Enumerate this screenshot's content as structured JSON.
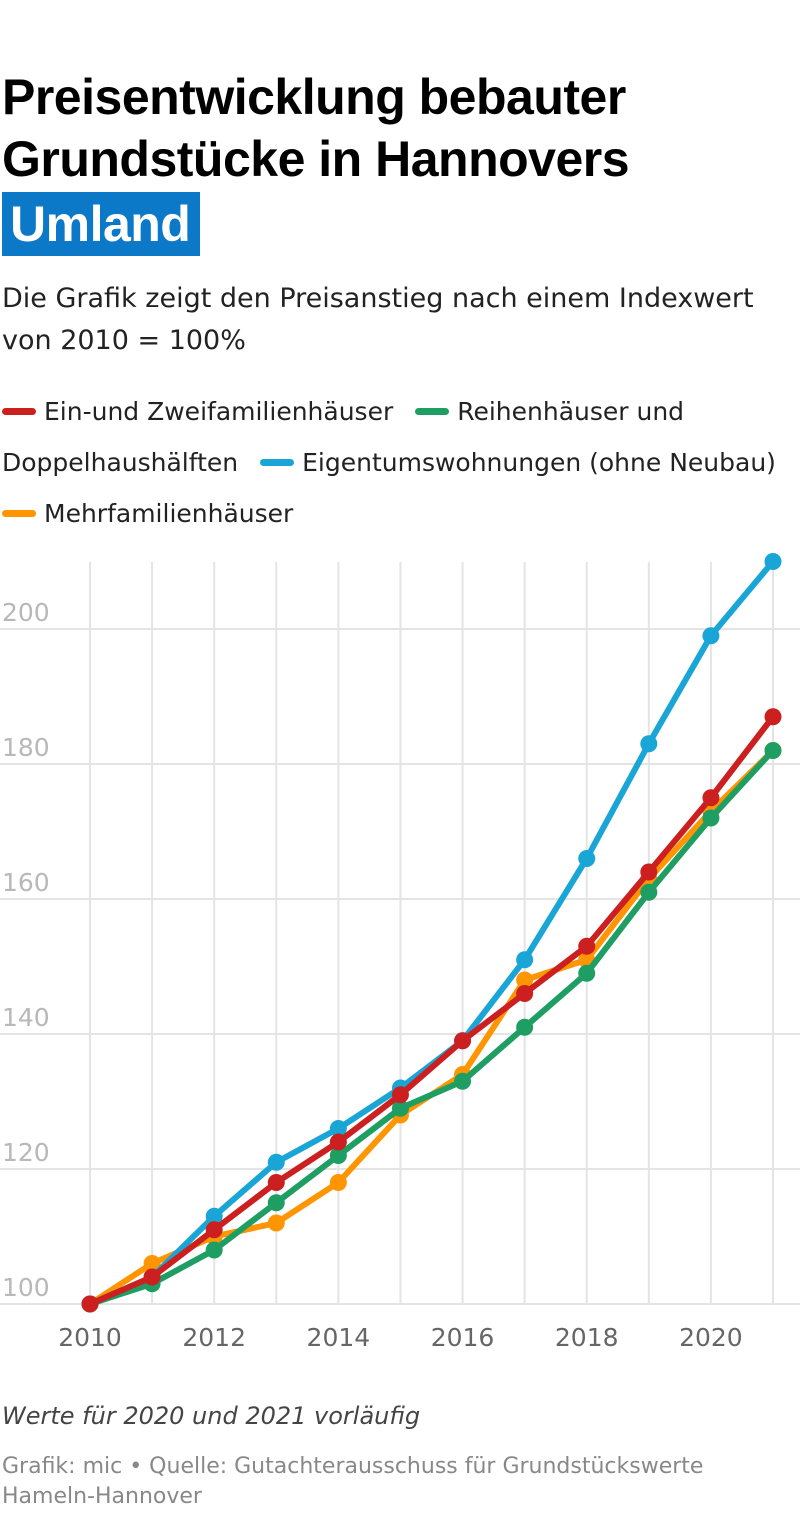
{
  "title": {
    "line1": "Preisentwicklung bebauter",
    "line2": "Grundstücke in Hannovers",
    "highlight": "Umland"
  },
  "subtitle": "Die Grafik zeigt den Preisanstieg nach einem Indexwert von 2010 = 100%",
  "note": "Werte für 2020 und 2021 vorläufig",
  "source": "Grafik: mic • Quelle: Gutachterausschuss für Grundstückswerte Hameln-Hannover",
  "chart_data": {
    "type": "line",
    "x": [
      2010,
      2011,
      2012,
      2013,
      2014,
      2015,
      2016,
      2017,
      2018,
      2019,
      2020,
      2021
    ],
    "xticks": [
      2010,
      2012,
      2014,
      2016,
      2018,
      2020
    ],
    "yticks": [
      100,
      120,
      140,
      160,
      180,
      200
    ],
    "xlim": [
      2010,
      2021
    ],
    "ylim": [
      100,
      210
    ],
    "grid": true,
    "legend_position": "top",
    "series": [
      {
        "name": "Ein-und Zweifamilienhäuser",
        "color": "#cc1f1f",
        "values": [
          100,
          104,
          111,
          118,
          124,
          131,
          139,
          146,
          153,
          164,
          175,
          187
        ]
      },
      {
        "name": "Reihenhäuser und Doppelhaushälften",
        "color": "#1e9e62",
        "values": [
          100,
          103,
          108,
          115,
          122,
          129,
          133,
          141,
          149,
          161,
          172,
          182
        ]
      },
      {
        "name": "Eigentumswohnungen (ohne Neubau)",
        "color": "#19a6d6",
        "values": [
          100,
          104,
          113,
          121,
          126,
          132,
          139,
          151,
          166,
          183,
          199,
          210
        ]
      },
      {
        "name": "Mehrfamilienhäuser",
        "color": "#ff9500",
        "values": [
          100,
          106,
          110,
          112,
          118,
          128,
          134,
          148,
          151,
          163,
          173,
          182
        ]
      }
    ],
    "draw_order": [
      3,
      2,
      1,
      0
    ]
  }
}
